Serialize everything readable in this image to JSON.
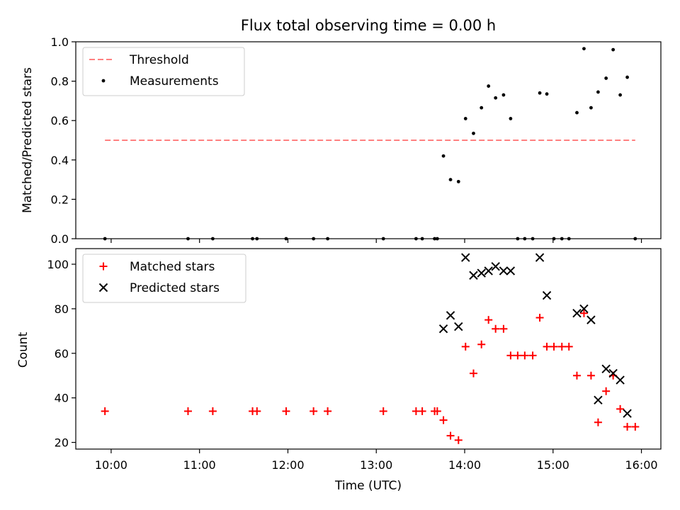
{
  "chart_data": [
    {
      "type": "scatter",
      "title": "Flux total observing time = 0.00 h",
      "ylabel": "Matched/Predicted stars",
      "xlabel": "",
      "xlim": [
        9.6,
        16.22
      ],
      "ylim": [
        0,
        1.0
      ],
      "yticks": [
        0.0,
        0.2,
        0.4,
        0.6,
        0.8,
        1.0
      ],
      "ytick_labels": [
        "0.0",
        "0.2",
        "0.4",
        "0.6",
        "0.8",
        "1.0"
      ],
      "xticks": [
        10,
        11,
        12,
        13,
        14,
        15,
        16
      ],
      "xtick_labels": [
        "",
        "",
        "",
        "",
        "",
        "",
        ""
      ],
      "legend": {
        "position": "top-left",
        "entries": [
          "Threshold",
          "Measurements"
        ]
      },
      "threshold": {
        "name": "Threshold",
        "x": [
          9.93,
          15.93
        ],
        "y": [
          0.5,
          0.5
        ],
        "color": "#ff8080",
        "style": "dashed"
      },
      "series": [
        {
          "name": "Measurements",
          "color": "#000000",
          "marker": "dot",
          "x": [
            9.93,
            10.87,
            11.15,
            11.6,
            11.65,
            11.98,
            12.29,
            12.45,
            13.08,
            13.45,
            13.52,
            13.66,
            13.69,
            13.76,
            13.84,
            13.93,
            14.01,
            14.1,
            14.19,
            14.27,
            14.35,
            14.44,
            14.52,
            14.6,
            14.68,
            14.77,
            14.85,
            14.93,
            15.01,
            15.1,
            15.18,
            15.27,
            15.35,
            15.43,
            15.51,
            15.6,
            15.68,
            15.76,
            15.84,
            15.93
          ],
          "y": [
            0.0,
            0.0,
            0.0,
            0.0,
            0.0,
            0.0,
            0.0,
            0.0,
            0.0,
            0.0,
            0.0,
            0.0,
            0.0,
            0.42,
            0.3,
            0.29,
            0.61,
            0.535,
            0.665,
            0.775,
            0.715,
            0.73,
            0.61,
            0.0,
            0.0,
            0.0,
            0.74,
            0.735,
            0.0,
            0.0,
            0.0,
            0.64,
            0.965,
            0.665,
            0.745,
            0.815,
            0.96,
            0.73,
            0.82,
            0.0
          ]
        }
      ]
    },
    {
      "type": "scatter",
      "title": "",
      "ylabel": "Count",
      "xlabel": "Time (UTC)",
      "xlim": [
        9.6,
        16.22
      ],
      "ylim": [
        17,
        107
      ],
      "yticks": [
        20,
        40,
        60,
        80,
        100
      ],
      "ytick_labels": [
        "20",
        "40",
        "60",
        "80",
        "100"
      ],
      "xticks": [
        10,
        11,
        12,
        13,
        14,
        15,
        16
      ],
      "xtick_labels": [
        "10:00",
        "11:00",
        "12:00",
        "13:00",
        "14:00",
        "15:00",
        "16:00"
      ],
      "legend": {
        "position": "top-left",
        "entries": [
          "Matched stars",
          "Predicted stars"
        ]
      },
      "series": [
        {
          "name": "Matched stars",
          "color": "#ff0000",
          "marker": "plus",
          "x": [
            9.93,
            10.87,
            11.15,
            11.6,
            11.65,
            11.98,
            12.29,
            12.45,
            13.08,
            13.45,
            13.52,
            13.66,
            13.69,
            13.76,
            13.84,
            13.93,
            14.01,
            14.1,
            14.19,
            14.27,
            14.35,
            14.44,
            14.52,
            14.6,
            14.68,
            14.77,
            14.85,
            14.93,
            15.01,
            15.1,
            15.18,
            15.27,
            15.35,
            15.43,
            15.51,
            15.6,
            15.68,
            15.76,
            15.84,
            15.93
          ],
          "y": [
            34,
            34,
            34,
            34,
            34,
            34,
            34,
            34,
            34,
            34,
            34,
            34,
            34,
            30,
            23,
            21,
            63,
            51,
            64,
            75,
            71,
            71,
            59,
            59,
            59,
            59,
            76,
            63,
            63,
            63,
            63,
            50,
            78,
            50,
            29,
            43,
            50,
            35,
            27,
            27
          ]
        },
        {
          "name": "Predicted stars",
          "color": "#000000",
          "marker": "x",
          "x": [
            13.76,
            13.84,
            13.93,
            14.01,
            14.1,
            14.19,
            14.27,
            14.35,
            14.44,
            14.52,
            14.85,
            14.93,
            15.27,
            15.35,
            15.43,
            15.51,
            15.6,
            15.68,
            15.76,
            15.84
          ],
          "y": [
            71,
            77,
            72,
            103,
            95,
            96,
            97,
            99,
            97,
            97,
            103,
            86,
            78,
            80,
            75,
            39,
            53,
            51,
            48,
            33
          ]
        }
      ]
    }
  ]
}
